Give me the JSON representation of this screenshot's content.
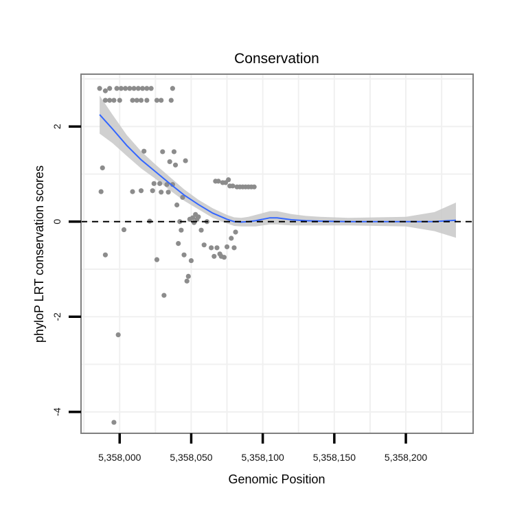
{
  "chart_data": {
    "type": "scatter",
    "title": "Conservation",
    "xlabel": "Genomic Position",
    "ylabel": "phyloP LRT conservation scores",
    "xlim": [
      5357973,
      5358247
    ],
    "ylim": [
      -4.45,
      3.1
    ],
    "xticks": [
      5358000,
      5358050,
      5358100,
      5358150,
      5358200
    ],
    "xtick_labels": [
      "5,358,000",
      "5,358,050",
      "5,358,100",
      "5,358,150",
      "5,358,200"
    ],
    "yticks": [
      2,
      0,
      -2,
      -4
    ],
    "ytick_labels": [
      "2",
      "0",
      "-2",
      "-4"
    ],
    "grid": true,
    "reference_line": {
      "y": 0,
      "style": "dashed",
      "color": "#000000"
    },
    "points": [
      {
        "x": 5357986,
        "y": 2.8
      },
      {
        "x": 5357990,
        "y": 2.75
      },
      {
        "x": 5357993,
        "y": 2.8
      },
      {
        "x": 5357998,
        "y": 2.8
      },
      {
        "x": 5358001,
        "y": 2.8
      },
      {
        "x": 5358004,
        "y": 2.8
      },
      {
        "x": 5358007,
        "y": 2.8
      },
      {
        "x": 5358010,
        "y": 2.8
      },
      {
        "x": 5358013,
        "y": 2.8
      },
      {
        "x": 5358016,
        "y": 2.8
      },
      {
        "x": 5358019,
        "y": 2.8
      },
      {
        "x": 5358022,
        "y": 2.8
      },
      {
        "x": 5358037,
        "y": 2.8
      },
      {
        "x": 5357990,
        "y": 2.55
      },
      {
        "x": 5357993,
        "y": 2.55
      },
      {
        "x": 5357996,
        "y": 2.55
      },
      {
        "x": 5358000,
        "y": 2.55
      },
      {
        "x": 5358009,
        "y": 2.55
      },
      {
        "x": 5358012,
        "y": 2.55
      },
      {
        "x": 5358015,
        "y": 2.55
      },
      {
        "x": 5358019,
        "y": 2.55
      },
      {
        "x": 5358026,
        "y": 2.55
      },
      {
        "x": 5358029,
        "y": 2.55
      },
      {
        "x": 5358036,
        "y": 2.55
      },
      {
        "x": 5357988,
        "y": 1.13
      },
      {
        "x": 5357987,
        "y": 0.63
      },
      {
        "x": 5357990,
        "y": -0.7
      },
      {
        "x": 5358003,
        "y": -0.17
      },
      {
        "x": 5357999,
        "y": -2.38
      },
      {
        "x": 5357996,
        "y": -4.22
      },
      {
        "x": 5358009,
        "y": 0.63
      },
      {
        "x": 5358015,
        "y": 0.65
      },
      {
        "x": 5358017,
        "y": 1.48
      },
      {
        "x": 5358021,
        "y": 0.01
      },
      {
        "x": 5358023,
        "y": 0.65
      },
      {
        "x": 5358024,
        "y": 0.8
      },
      {
        "x": 5358026,
        "y": -0.8
      },
      {
        "x": 5358028,
        "y": 0.8
      },
      {
        "x": 5358029,
        "y": 0.62
      },
      {
        "x": 5358030,
        "y": 1.47
      },
      {
        "x": 5358031,
        "y": -1.55
      },
      {
        "x": 5358033,
        "y": 0.78
      },
      {
        "x": 5358034,
        "y": 0.62
      },
      {
        "x": 5358035,
        "y": 1.26
      },
      {
        "x": 5358037,
        "y": 0.78
      },
      {
        "x": 5358038,
        "y": 1.47
      },
      {
        "x": 5358039,
        "y": 1.19
      },
      {
        "x": 5358040,
        "y": 0.35
      },
      {
        "x": 5358041,
        "y": -0.46
      },
      {
        "x": 5358042,
        "y": 0.0
      },
      {
        "x": 5358043,
        "y": -0.18
      },
      {
        "x": 5358044,
        "y": 0.51
      },
      {
        "x": 5358045,
        "y": -0.7
      },
      {
        "x": 5358046,
        "y": 1.28
      },
      {
        "x": 5358047,
        "y": -1.25
      },
      {
        "x": 5358048,
        "y": -1.15
      },
      {
        "x": 5358049,
        "y": 0.05
      },
      {
        "x": 5358050,
        "y": -0.82
      },
      {
        "x": 5358051,
        "y": 0.08
      },
      {
        "x": 5358052,
        "y": -0.02
      },
      {
        "x": 5358053,
        "y": 0.15
      },
      {
        "x": 5358054,
        "y": 0.05
      },
      {
        "x": 5358055,
        "y": 0.1
      },
      {
        "x": 5358057,
        "y": -0.18
      },
      {
        "x": 5358059,
        "y": -0.49
      },
      {
        "x": 5358061,
        "y": 0.0
      },
      {
        "x": 5358064,
        "y": -0.55
      },
      {
        "x": 5358066,
        "y": -0.73
      },
      {
        "x": 5358067,
        "y": 0.85
      },
      {
        "x": 5358068,
        "y": -0.55
      },
      {
        "x": 5358069,
        "y": 0.85
      },
      {
        "x": 5358070,
        "y": -0.68
      },
      {
        "x": 5358071,
        "y": -0.73
      },
      {
        "x": 5358072,
        "y": 0.82
      },
      {
        "x": 5358073,
        "y": -0.75
      },
      {
        "x": 5358074,
        "y": 0.82
      },
      {
        "x": 5358075,
        "y": -0.53
      },
      {
        "x": 5358076,
        "y": 0.88
      },
      {
        "x": 5358077,
        "y": 0.75
      },
      {
        "x": 5358078,
        "y": -0.35
      },
      {
        "x": 5358079,
        "y": 0.75
      },
      {
        "x": 5358080,
        "y": -0.55
      },
      {
        "x": 5358081,
        "y": -0.22
      },
      {
        "x": 5358082,
        "y": 0.73
      },
      {
        "x": 5358084,
        "y": 0.73
      },
      {
        "x": 5358086,
        "y": 0.73
      },
      {
        "x": 5358088,
        "y": 0.73
      },
      {
        "x": 5358090,
        "y": 0.73
      },
      {
        "x": 5358092,
        "y": 0.73
      },
      {
        "x": 5358094,
        "y": 0.73
      }
    ],
    "smooth": {
      "x": [
        5357986,
        5357995,
        5358005,
        5358015,
        5358025,
        5358035,
        5358045,
        5358055,
        5358065,
        5358075,
        5358080,
        5358085,
        5358090,
        5358095,
        5358100,
        5358105,
        5358110,
        5358115,
        5358120,
        5358130,
        5358140,
        5358160,
        5358180,
        5358200,
        5358220,
        5358235
      ],
      "y": [
        2.25,
        1.95,
        1.6,
        1.3,
        1.05,
        0.8,
        0.56,
        0.36,
        0.18,
        0.05,
        0.0,
        -0.01,
        0.0,
        0.02,
        0.05,
        0.08,
        0.08,
        0.06,
        0.04,
        0.02,
        0.01,
        0.0,
        0.0,
        0.0,
        0.0,
        0.03
      ],
      "ci_upper": [
        2.65,
        2.25,
        1.82,
        1.48,
        1.2,
        0.94,
        0.68,
        0.46,
        0.28,
        0.14,
        0.09,
        0.08,
        0.1,
        0.14,
        0.18,
        0.22,
        0.22,
        0.19,
        0.16,
        0.12,
        0.1,
        0.08,
        0.09,
        0.1,
        0.2,
        0.4
      ],
      "ci_lower": [
        1.85,
        1.65,
        1.38,
        1.12,
        0.9,
        0.66,
        0.44,
        0.26,
        0.08,
        -0.04,
        -0.09,
        -0.1,
        -0.1,
        -0.1,
        -0.08,
        -0.06,
        -0.06,
        -0.07,
        -0.08,
        -0.08,
        -0.08,
        -0.08,
        -0.09,
        -0.1,
        -0.2,
        -0.34
      ]
    },
    "colors": {
      "points": "#8c8c8c",
      "smooth_line": "#3366ff",
      "ci_band": "#c8c8c8",
      "panel_border": "#7f7f7f",
      "grid": "#f0f0f0"
    }
  }
}
